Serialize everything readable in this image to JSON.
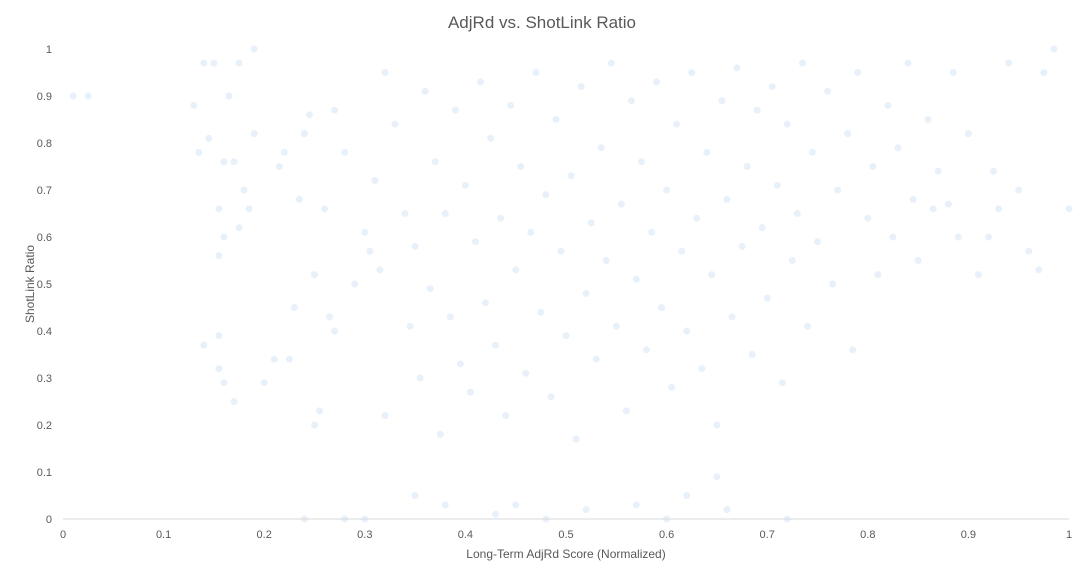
{
  "chart_data": {
    "type": "scatter",
    "title": "AdjRd vs. ShotLink Ratio",
    "xlabel": "Long-Term  AdjRd Score (Normalized)",
    "ylabel": "ShotLink Ratio",
    "xlim": [
      0,
      1
    ],
    "ylim": [
      0,
      1
    ],
    "x_ticks": [
      "0",
      "0.1",
      "0.2",
      "0.3",
      "0.4",
      "0.5",
      "0.6",
      "0.7",
      "0.8",
      "0.9",
      "1"
    ],
    "y_ticks": [
      "0",
      "0.1",
      "0.2",
      "0.3",
      "0.4",
      "0.5",
      "0.6",
      "0.7",
      "0.8",
      "0.9",
      "1"
    ],
    "grid": false,
    "legend": "none",
    "point_color": "#5B9BD5",
    "point_opacity": 0.14,
    "points": [
      [
        0.01,
        0.9
      ],
      [
        0.025,
        0.9
      ],
      [
        0.13,
        0.88
      ],
      [
        0.135,
        0.78
      ],
      [
        0.14,
        0.97
      ],
      [
        0.145,
        0.81
      ],
      [
        0.15,
        0.97
      ],
      [
        0.155,
        0.66
      ],
      [
        0.155,
        0.56
      ],
      [
        0.16,
        0.6
      ],
      [
        0.16,
        0.76
      ],
      [
        0.165,
        0.9
      ],
      [
        0.17,
        0.76
      ],
      [
        0.175,
        0.97
      ],
      [
        0.175,
        0.62
      ],
      [
        0.18,
        0.7
      ],
      [
        0.185,
        0.66
      ],
      [
        0.19,
        0.82
      ],
      [
        0.19,
        1.0
      ],
      [
        0.14,
        0.37
      ],
      [
        0.155,
        0.39
      ],
      [
        0.155,
        0.32
      ],
      [
        0.16,
        0.29
      ],
      [
        0.17,
        0.25
      ],
      [
        0.2,
        0.29
      ],
      [
        0.21,
        0.34
      ],
      [
        0.215,
        0.75
      ],
      [
        0.22,
        0.78
      ],
      [
        0.225,
        0.34
      ],
      [
        0.23,
        0.45
      ],
      [
        0.235,
        0.68
      ],
      [
        0.24,
        0.82
      ],
      [
        0.245,
        0.86
      ],
      [
        0.25,
        0.52
      ],
      [
        0.25,
        0.2
      ],
      [
        0.255,
        0.23
      ],
      [
        0.26,
        0.66
      ],
      [
        0.265,
        0.43
      ],
      [
        0.27,
        0.4
      ],
      [
        0.27,
        0.87
      ],
      [
        0.28,
        0.78
      ],
      [
        0.29,
        0.5
      ],
      [
        0.3,
        0.61
      ],
      [
        0.305,
        0.57
      ],
      [
        0.31,
        0.72
      ],
      [
        0.315,
        0.53
      ],
      [
        0.32,
        0.95
      ],
      [
        0.32,
        0.22
      ],
      [
        0.33,
        0.84
      ],
      [
        0.34,
        0.65
      ],
      [
        0.345,
        0.41
      ],
      [
        0.35,
        0.58
      ],
      [
        0.355,
        0.3
      ],
      [
        0.36,
        0.91
      ],
      [
        0.365,
        0.49
      ],
      [
        0.37,
        0.76
      ],
      [
        0.375,
        0.18
      ],
      [
        0.38,
        0.65
      ],
      [
        0.385,
        0.43
      ],
      [
        0.39,
        0.87
      ],
      [
        0.395,
        0.33
      ],
      [
        0.4,
        0.71
      ],
      [
        0.405,
        0.27
      ],
      [
        0.41,
        0.59
      ],
      [
        0.415,
        0.93
      ],
      [
        0.42,
        0.46
      ],
      [
        0.425,
        0.81
      ],
      [
        0.43,
        0.37
      ],
      [
        0.435,
        0.64
      ],
      [
        0.44,
        0.22
      ],
      [
        0.445,
        0.88
      ],
      [
        0.45,
        0.53
      ],
      [
        0.455,
        0.75
      ],
      [
        0.46,
        0.31
      ],
      [
        0.465,
        0.61
      ],
      [
        0.47,
        0.95
      ],
      [
        0.475,
        0.44
      ],
      [
        0.48,
        0.69
      ],
      [
        0.485,
        0.26
      ],
      [
        0.49,
        0.85
      ],
      [
        0.495,
        0.57
      ],
      [
        0.5,
        0.39
      ],
      [
        0.505,
        0.73
      ],
      [
        0.51,
        0.17
      ],
      [
        0.515,
        0.92
      ],
      [
        0.52,
        0.48
      ],
      [
        0.525,
        0.63
      ],
      [
        0.53,
        0.34
      ],
      [
        0.535,
        0.79
      ],
      [
        0.54,
        0.55
      ],
      [
        0.545,
        0.97
      ],
      [
        0.55,
        0.41
      ],
      [
        0.555,
        0.67
      ],
      [
        0.56,
        0.23
      ],
      [
        0.565,
        0.89
      ],
      [
        0.57,
        0.51
      ],
      [
        0.575,
        0.76
      ],
      [
        0.58,
        0.36
      ],
      [
        0.585,
        0.61
      ],
      [
        0.59,
        0.93
      ],
      [
        0.595,
        0.45
      ],
      [
        0.6,
        0.7
      ],
      [
        0.605,
        0.28
      ],
      [
        0.61,
        0.84
      ],
      [
        0.615,
        0.57
      ],
      [
        0.62,
        0.4
      ],
      [
        0.625,
        0.95
      ],
      [
        0.63,
        0.64
      ],
      [
        0.635,
        0.32
      ],
      [
        0.64,
        0.78
      ],
      [
        0.645,
        0.52
      ],
      [
        0.65,
        0.2
      ],
      [
        0.655,
        0.89
      ],
      [
        0.66,
        0.68
      ],
      [
        0.665,
        0.43
      ],
      [
        0.67,
        0.96
      ],
      [
        0.675,
        0.58
      ],
      [
        0.68,
        0.75
      ],
      [
        0.685,
        0.35
      ],
      [
        0.69,
        0.87
      ],
      [
        0.695,
        0.62
      ],
      [
        0.7,
        0.47
      ],
      [
        0.705,
        0.92
      ],
      [
        0.71,
        0.71
      ],
      [
        0.715,
        0.29
      ],
      [
        0.72,
        0.84
      ],
      [
        0.725,
        0.55
      ],
      [
        0.73,
        0.65
      ],
      [
        0.735,
        0.97
      ],
      [
        0.74,
        0.41
      ],
      [
        0.745,
        0.78
      ],
      [
        0.75,
        0.59
      ],
      [
        0.76,
        0.91
      ],
      [
        0.765,
        0.5
      ],
      [
        0.77,
        0.7
      ],
      [
        0.78,
        0.82
      ],
      [
        0.785,
        0.36
      ],
      [
        0.79,
        0.95
      ],
      [
        0.8,
        0.64
      ],
      [
        0.805,
        0.75
      ],
      [
        0.81,
        0.52
      ],
      [
        0.82,
        0.88
      ],
      [
        0.825,
        0.6
      ],
      [
        0.83,
        0.79
      ],
      [
        0.84,
        0.97
      ],
      [
        0.845,
        0.68
      ],
      [
        0.85,
        0.55
      ],
      [
        0.86,
        0.85
      ],
      [
        0.865,
        0.66
      ],
      [
        0.87,
        0.74
      ],
      [
        0.88,
        0.67
      ],
      [
        0.885,
        0.95
      ],
      [
        0.89,
        0.6
      ],
      [
        0.9,
        0.82
      ],
      [
        0.91,
        0.52
      ],
      [
        0.92,
        0.6
      ],
      [
        0.925,
        0.74
      ],
      [
        0.93,
        0.66
      ],
      [
        0.94,
        0.97
      ],
      [
        0.95,
        0.7
      ],
      [
        0.96,
        0.57
      ],
      [
        0.97,
        0.53
      ],
      [
        0.975,
        0.95
      ],
      [
        0.985,
        1.0
      ],
      [
        1.0,
        0.66
      ],
      [
        0.48,
        0.0
      ],
      [
        0.52,
        0.02
      ],
      [
        0.57,
        0.03
      ],
      [
        0.6,
        0.0
      ],
      [
        0.66,
        0.02
      ],
      [
        0.24,
        0.0
      ],
      [
        0.28,
        0.0
      ],
      [
        0.3,
        0.0
      ],
      [
        0.43,
        0.01
      ],
      [
        0.45,
        0.03
      ],
      [
        0.62,
        0.05
      ],
      [
        0.65,
        0.09
      ],
      [
        0.72,
        0.0
      ],
      [
        0.35,
        0.05
      ],
      [
        0.38,
        0.03
      ]
    ]
  }
}
